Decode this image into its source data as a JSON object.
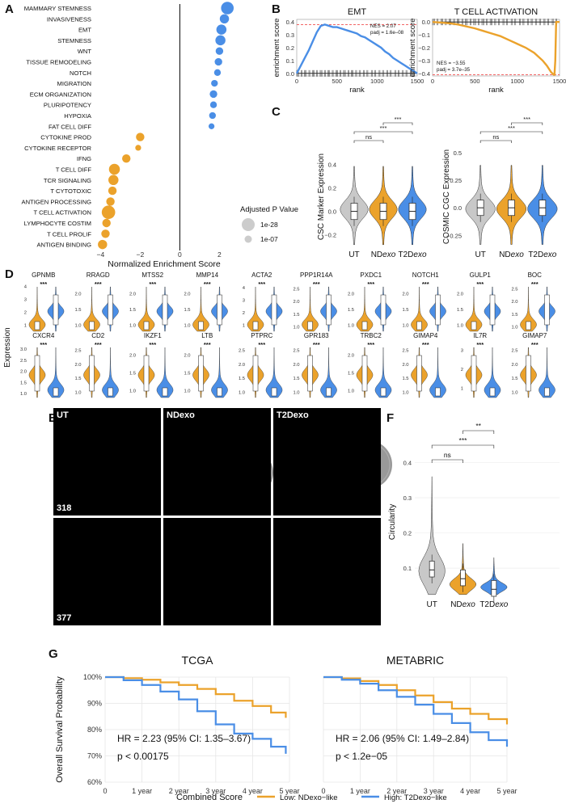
{
  "panels": {
    "A": "A",
    "B": "B",
    "C": "C",
    "D": "D",
    "E": "E",
    "F": "F",
    "G": "G"
  },
  "colors": {
    "up": "#4a8ee6",
    "down": "#eba22b",
    "ut": "#c8c8c8",
    "nes_line": "#e33"
  },
  "chart_data": [
    {
      "id": "A",
      "type": "scatter",
      "xlabel": "Normalized Enrichment Score",
      "xticks": [
        -4,
        -2,
        0,
        2
      ],
      "xlim": [
        -4.3,
        2.8
      ],
      "legend": {
        "title": "Adjusted P Value",
        "entries": [
          "1e-28",
          "1e-07"
        ]
      },
      "terms": [
        {
          "label": "MAMMARY STEMNESS",
          "nes": 2.4,
          "size": 3
        },
        {
          "label": "INVASIVENESS",
          "nes": 2.25,
          "size": 2.2
        },
        {
          "label": "EMT",
          "nes": 2.1,
          "size": 2.4
        },
        {
          "label": "STEMNESS",
          "nes": 2.05,
          "size": 2.4
        },
        {
          "label": "WNT",
          "nes": 2.0,
          "size": 1.8
        },
        {
          "label": "TISSUE REMODELING",
          "nes": 1.95,
          "size": 1.8
        },
        {
          "label": "NOTCH",
          "nes": 1.9,
          "size": 1.6
        },
        {
          "label": "MIGRATION",
          "nes": 1.75,
          "size": 1.6
        },
        {
          "label": "ECM ORGANIZATION",
          "nes": 1.7,
          "size": 1.8
        },
        {
          "label": "PLURIPOTENCY",
          "nes": 1.7,
          "size": 1.6
        },
        {
          "label": "HYPOXIA",
          "nes": 1.65,
          "size": 1.6
        },
        {
          "label": "FAT CELL DIFF",
          "nes": 1.6,
          "size": 1.4
        },
        {
          "label": "CYTOKINE PROD",
          "nes": -2.0,
          "size": 2.0
        },
        {
          "label": "CYTOKINE RECEPTOR",
          "nes": -2.1,
          "size": 1.4
        },
        {
          "label": "IFNG",
          "nes": -2.7,
          "size": 2.0
        },
        {
          "label": "T CELL DIFF",
          "nes": -3.3,
          "size": 2.6
        },
        {
          "label": "TCR SIGNALING",
          "nes": -3.35,
          "size": 2.4
        },
        {
          "label": "T CYTOTOXIC",
          "nes": -3.4,
          "size": 2.0
        },
        {
          "label": "ANTIGEN PROCESSING",
          "nes": -3.5,
          "size": 2.0
        },
        {
          "label": "T CELL ACTIVATION",
          "nes": -3.6,
          "size": 3.2
        },
        {
          "label": "LYMPHOCYTE COSTIM",
          "nes": -3.7,
          "size": 2.0
        },
        {
          "label": "T CELL PROLIF",
          "nes": -3.75,
          "size": 2.0
        },
        {
          "label": "ANTIGEN BINDING",
          "nes": -3.9,
          "size": 2.2
        }
      ]
    },
    {
      "id": "B1",
      "type": "line",
      "title": "EMT",
      "xlabel": "rank",
      "ylabel": "enrichment score",
      "xticks": [
        0,
        500,
        1000,
        1500
      ],
      "yticks": [
        0.0,
        0.1,
        0.2,
        0.3,
        0.4
      ],
      "ylim": [
        -0.02,
        0.42
      ],
      "xlim": [
        0,
        1500
      ],
      "annotation": [
        "NES = 2.07",
        "padj = 1.6e–08"
      ],
      "x": [
        0,
        50,
        100,
        150,
        200,
        250,
        300,
        350,
        400,
        450,
        500,
        550,
        600,
        650,
        700,
        750,
        800,
        850,
        900,
        950,
        1000,
        1050,
        1100,
        1150,
        1200,
        1250,
        1300,
        1350,
        1400,
        1450,
        1500
      ],
      "y": [
        0.0,
        0.06,
        0.12,
        0.18,
        0.25,
        0.32,
        0.37,
        0.38,
        0.37,
        0.36,
        0.36,
        0.35,
        0.34,
        0.33,
        0.32,
        0.31,
        0.29,
        0.28,
        0.26,
        0.24,
        0.22,
        0.2,
        0.17,
        0.15,
        0.12,
        0.1,
        0.08,
        0.06,
        0.04,
        0.02,
        0.0
      ]
    },
    {
      "id": "B2",
      "type": "line",
      "title": "T CELL ACTIVATION",
      "xlabel": "rank",
      "ylabel": "enrichment score",
      "xticks": [
        0,
        500,
        1000,
        1500
      ],
      "yticks": [
        0.0,
        -0.1,
        -0.2,
        -0.3,
        -0.4
      ],
      "ylim": [
        -0.42,
        0.02
      ],
      "xlim": [
        0,
        1500
      ],
      "annotation": [
        "NES = −3.55",
        "padj = 3.7e–35"
      ],
      "x": [
        0,
        100,
        200,
        300,
        400,
        500,
        600,
        700,
        800,
        900,
        1000,
        1100,
        1200,
        1300,
        1350,
        1400,
        1430,
        1440,
        1450,
        1460,
        1480,
        1500
      ],
      "y": [
        0.0,
        -0.005,
        -0.01,
        -0.02,
        -0.035,
        -0.05,
        -0.07,
        -0.09,
        -0.11,
        -0.14,
        -0.17,
        -0.2,
        -0.24,
        -0.3,
        -0.34,
        -0.39,
        -0.41,
        -0.41,
        -0.3,
        0.0,
        0.0,
        0.0
      ]
    },
    {
      "id": "C1",
      "type": "violin",
      "ylabel": "CSC Marker Expression",
      "categories": [
        "UT",
        "NDexo",
        "T2Dexo"
      ],
      "yticks": [
        -0.2,
        0.0,
        0.2,
        0.4
      ],
      "ylim": [
        -0.3,
        0.55
      ],
      "medians": [
        0.0,
        0.0,
        0.0
      ],
      "brackets": [
        {
          "from": 1,
          "to": 2,
          "label": "***"
        },
        {
          "from": 0,
          "to": 2,
          "label": "***"
        },
        {
          "from": 0,
          "to": 1,
          "label": "ns"
        }
      ]
    },
    {
      "id": "C2",
      "type": "violin",
      "ylabel": "COSMIC CGC Expression",
      "categories": [
        "UT",
        "NDexo",
        "T2Dexo"
      ],
      "yticks": [
        -0.25,
        0.0,
        0.25,
        0.5
      ],
      "ylim": [
        -0.35,
        0.55
      ],
      "medians": [
        0.0,
        0.0,
        0.0
      ],
      "brackets": [
        {
          "from": 1,
          "to": 2,
          "label": "***"
        },
        {
          "from": 0,
          "to": 2,
          "label": "***"
        },
        {
          "from": 0,
          "to": 1,
          "label": "ns"
        }
      ]
    },
    {
      "id": "D",
      "type": "violin",
      "ylabel": "Expression",
      "sig": "***",
      "rows": [
        [
          {
            "gene": "GPNMB",
            "ticks": [
              "1",
              "2",
              "3",
              "4"
            ],
            "lo": 0.5,
            "hi": 4.2,
            "up": true
          },
          {
            "gene": "RRAGD",
            "ticks": [
              "1.0",
              "1.5",
              "2.0"
            ],
            "lo": 0.8,
            "hi": 2.3,
            "up": true
          },
          {
            "gene": "MTSS2",
            "ticks": [
              "1.0",
              "1.5",
              "2.0"
            ],
            "lo": 0.8,
            "hi": 2.3,
            "up": true
          },
          {
            "gene": "MMP14",
            "ticks": [
              "1.0",
              "1.5",
              "2.0"
            ],
            "lo": 0.8,
            "hi": 2.3,
            "up": true
          },
          {
            "gene": "ACTA2",
            "ticks": [
              "1",
              "2",
              "3",
              "4"
            ],
            "lo": 0.5,
            "hi": 4.3,
            "up": true
          },
          {
            "gene": "PPP1R14A",
            "ticks": [
              "1.0",
              "1.5",
              "2.0",
              "2.5"
            ],
            "lo": 0.8,
            "hi": 2.7,
            "up": true
          },
          {
            "gene": "PXDC1",
            "ticks": [
              "1.0",
              "1.5",
              "2.0"
            ],
            "lo": 0.8,
            "hi": 2.3,
            "up": true
          },
          {
            "gene": "NOTCH1",
            "ticks": [
              "1.0",
              "1.5",
              "2.0"
            ],
            "lo": 0.8,
            "hi": 2.3,
            "up": true
          },
          {
            "gene": "GULP1",
            "ticks": [
              "1.0",
              "1.5",
              "2.0"
            ],
            "lo": 0.8,
            "hi": 2.3,
            "up": true
          },
          {
            "gene": "BOC",
            "ticks": [
              "1.0",
              "1.5",
              "2.0",
              "2.5"
            ],
            "lo": 0.8,
            "hi": 2.7,
            "up": true
          }
        ],
        [
          {
            "gene": "CXCR4",
            "ticks": [
              "1.0",
              "1.5",
              "2.0",
              "2.5",
              "3.0"
            ],
            "lo": 0.8,
            "hi": 3.2,
            "up": false
          },
          {
            "gene": "CD2",
            "ticks": [
              "1.0",
              "1.5",
              "2.0",
              "2.5"
            ],
            "lo": 0.8,
            "hi": 2.7,
            "up": false
          },
          {
            "gene": "IKZF1",
            "ticks": [
              "1.0",
              "1.5",
              "2.0"
            ],
            "lo": 0.8,
            "hi": 2.3,
            "up": false
          },
          {
            "gene": "LTB",
            "ticks": [
              "1.0",
              "1.5",
              "2.0"
            ],
            "lo": 0.8,
            "hi": 2.3,
            "up": false
          },
          {
            "gene": "PTPRC",
            "ticks": [
              "1.0",
              "1.5",
              "2.0",
              "2.5"
            ],
            "lo": 0.8,
            "hi": 2.7,
            "up": false
          },
          {
            "gene": "GPR183",
            "ticks": [
              "1.0",
              "1.5",
              "2.0",
              "2.5"
            ],
            "lo": 0.8,
            "hi": 2.7,
            "up": false
          },
          {
            "gene": "TRBC2",
            "ticks": [
              "1.0",
              "1.5",
              "2.0"
            ],
            "lo": 0.8,
            "hi": 2.3,
            "up": false
          },
          {
            "gene": "GIMAP4",
            "ticks": [
              "1.0",
              "1.5",
              "2.0",
              "2.5"
            ],
            "lo": 0.8,
            "hi": 2.7,
            "up": false
          },
          {
            "gene": "IL7R",
            "ticks": [
              "1",
              "2",
              "3"
            ],
            "lo": 0.5,
            "hi": 3.3,
            "up": false
          },
          {
            "gene": "GIMAP7",
            "ticks": [
              "1.0",
              "1.5",
              "2.0",
              "2.5"
            ],
            "lo": 0.8,
            "hi": 2.7,
            "up": false
          }
        ]
      ]
    },
    {
      "id": "F",
      "type": "violin",
      "ylabel": "Circularity",
      "categories": [
        "UT",
        "NDexo",
        "T2Dexo"
      ],
      "yticks": [
        0.1,
        0.2,
        0.3,
        0.4
      ],
      "ylim": [
        0.02,
        0.44
      ],
      "medians": [
        0.095,
        0.07,
        0.04
      ],
      "brackets": [
        {
          "from": 1,
          "to": 2,
          "label": "**"
        },
        {
          "from": 0,
          "to": 2,
          "label": "***"
        },
        {
          "from": 0,
          "to": 1,
          "label": "ns"
        }
      ]
    },
    {
      "id": "G1",
      "type": "line",
      "title": "TCGA",
      "xticks": [
        "0",
        "1 year",
        "2 year",
        "3 year",
        "4 year",
        "5 year"
      ],
      "yticks": [
        "60%",
        "70%",
        "80%",
        "90%",
        "100%"
      ],
      "ylim": [
        60,
        100
      ],
      "xlim": [
        0,
        5
      ],
      "ylabel": "Overall Survival Probability",
      "hr_text": "HR = 2.23 (95% CI: 1.35–3.67)",
      "p_text": "p < 0.00175",
      "series": [
        {
          "name": "Low: NDexo−like",
          "x": [
            0,
            0.5,
            1,
            1.5,
            2,
            2.5,
            3,
            3.5,
            4,
            4.5,
            4.9
          ],
          "y": [
            100,
            99.6,
            99,
            98,
            97,
            95.5,
            93.5,
            91,
            89,
            86.5,
            84.5
          ]
        },
        {
          "name": "High: T2Dexo−like",
          "x": [
            0,
            0.5,
            1,
            1.5,
            2,
            2.5,
            3,
            3.5,
            4,
            4.5,
            4.9
          ],
          "y": [
            100,
            98.8,
            97,
            94.5,
            91.5,
            87,
            82,
            78.5,
            76.5,
            73.5,
            70.8
          ]
        }
      ]
    },
    {
      "id": "G2",
      "type": "line",
      "title": "METABRIC",
      "xticks": [
        "0",
        "1 year",
        "2 year",
        "3 year",
        "4 year",
        "5 year"
      ],
      "yticks": [
        "60%",
        "70%",
        "80%",
        "90%",
        "100%"
      ],
      "ylim": [
        60,
        100
      ],
      "xlim": [
        0,
        5
      ],
      "hr_text": "HR = 2.06 (95% CI: 1.49–2.84)",
      "p_text": "p < 1.2e−05",
      "series": [
        {
          "name": "Low: NDexo−like",
          "x": [
            0,
            0.5,
            1,
            1.5,
            2,
            2.5,
            3,
            3.5,
            4,
            4.5,
            5
          ],
          "y": [
            100,
            99.5,
            98.5,
            97,
            95,
            93,
            90.5,
            88,
            86,
            84,
            82
          ]
        },
        {
          "name": "High: T2Dexo−like",
          "x": [
            0,
            0.5,
            1,
            1.5,
            2,
            2.5,
            3,
            3.5,
            4,
            4.5,
            5
          ],
          "y": [
            100,
            99,
            97.5,
            95,
            92.5,
            89.5,
            86,
            82.5,
            79,
            76,
            73.5
          ]
        }
      ]
    }
  ],
  "micrographs": {
    "cols": [
      "UT",
      "NDexo",
      "T2Dexo"
    ],
    "rows": [
      "318",
      "377"
    ]
  },
  "legend_g": {
    "title": "Combined Score",
    "low": "Low: NDexo−like",
    "high": "High: T2Dexo−like"
  }
}
